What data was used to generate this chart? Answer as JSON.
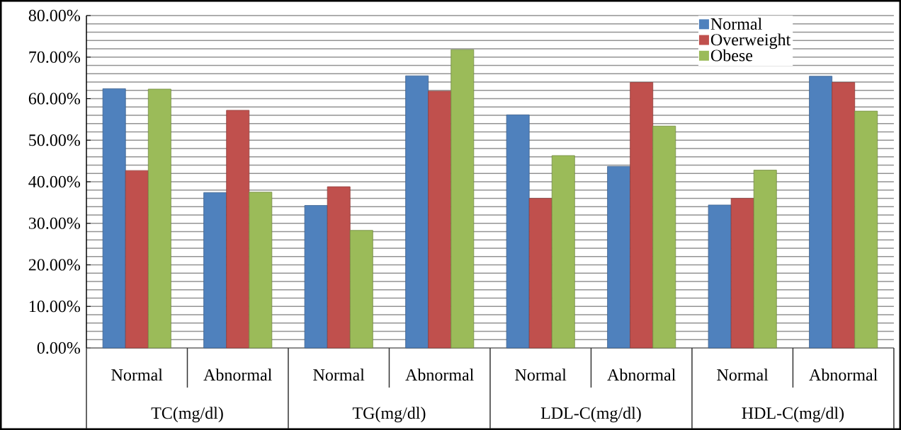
{
  "chart_data": {
    "type": "bar",
    "categories": [
      "Normal",
      "Abnormal",
      "Normal",
      "Abnormal",
      "Normal",
      "Abnormal",
      "Normal",
      "Abnormal"
    ],
    "annotations": [
      "TC(mg/dl)",
      "TG(mg/dl)",
      "LDL-C(mg/dl)",
      "HDL-C(mg/dl)"
    ],
    "series": [
      {
        "name": "Normal",
        "color": "#4f81bd",
        "values": [
          62.4,
          37.4,
          34.3,
          65.5,
          56.1,
          43.7,
          34.4,
          65.4
        ]
      },
      {
        "name": "Overweight",
        "color": "#c0504d",
        "values": [
          42.7,
          57.2,
          38.8,
          61.8,
          36.0,
          63.9,
          36.0,
          63.9
        ]
      },
      {
        "name": "Obese",
        "color": "#9bbb59",
        "values": [
          62.3,
          37.5,
          28.3,
          71.8,
          46.3,
          53.4,
          42.8,
          57.0
        ]
      }
    ],
    "ylim": [
      0,
      80
    ],
    "yticks": [
      {
        "value": 0,
        "label": "0.00%"
      },
      {
        "value": 10,
        "label": "10.00%"
      },
      {
        "value": 20,
        "label": "20.00%"
      },
      {
        "value": 30,
        "label": "30.00%"
      },
      {
        "value": 40,
        "label": "40.00%"
      },
      {
        "value": 50,
        "label": "50.00%"
      },
      {
        "value": 60,
        "label": "60.00%"
      },
      {
        "value": 70,
        "label": "70.00%"
      },
      {
        "value": 80,
        "label": "80.00%"
      }
    ],
    "grid": "y",
    "legend": "top right"
  }
}
